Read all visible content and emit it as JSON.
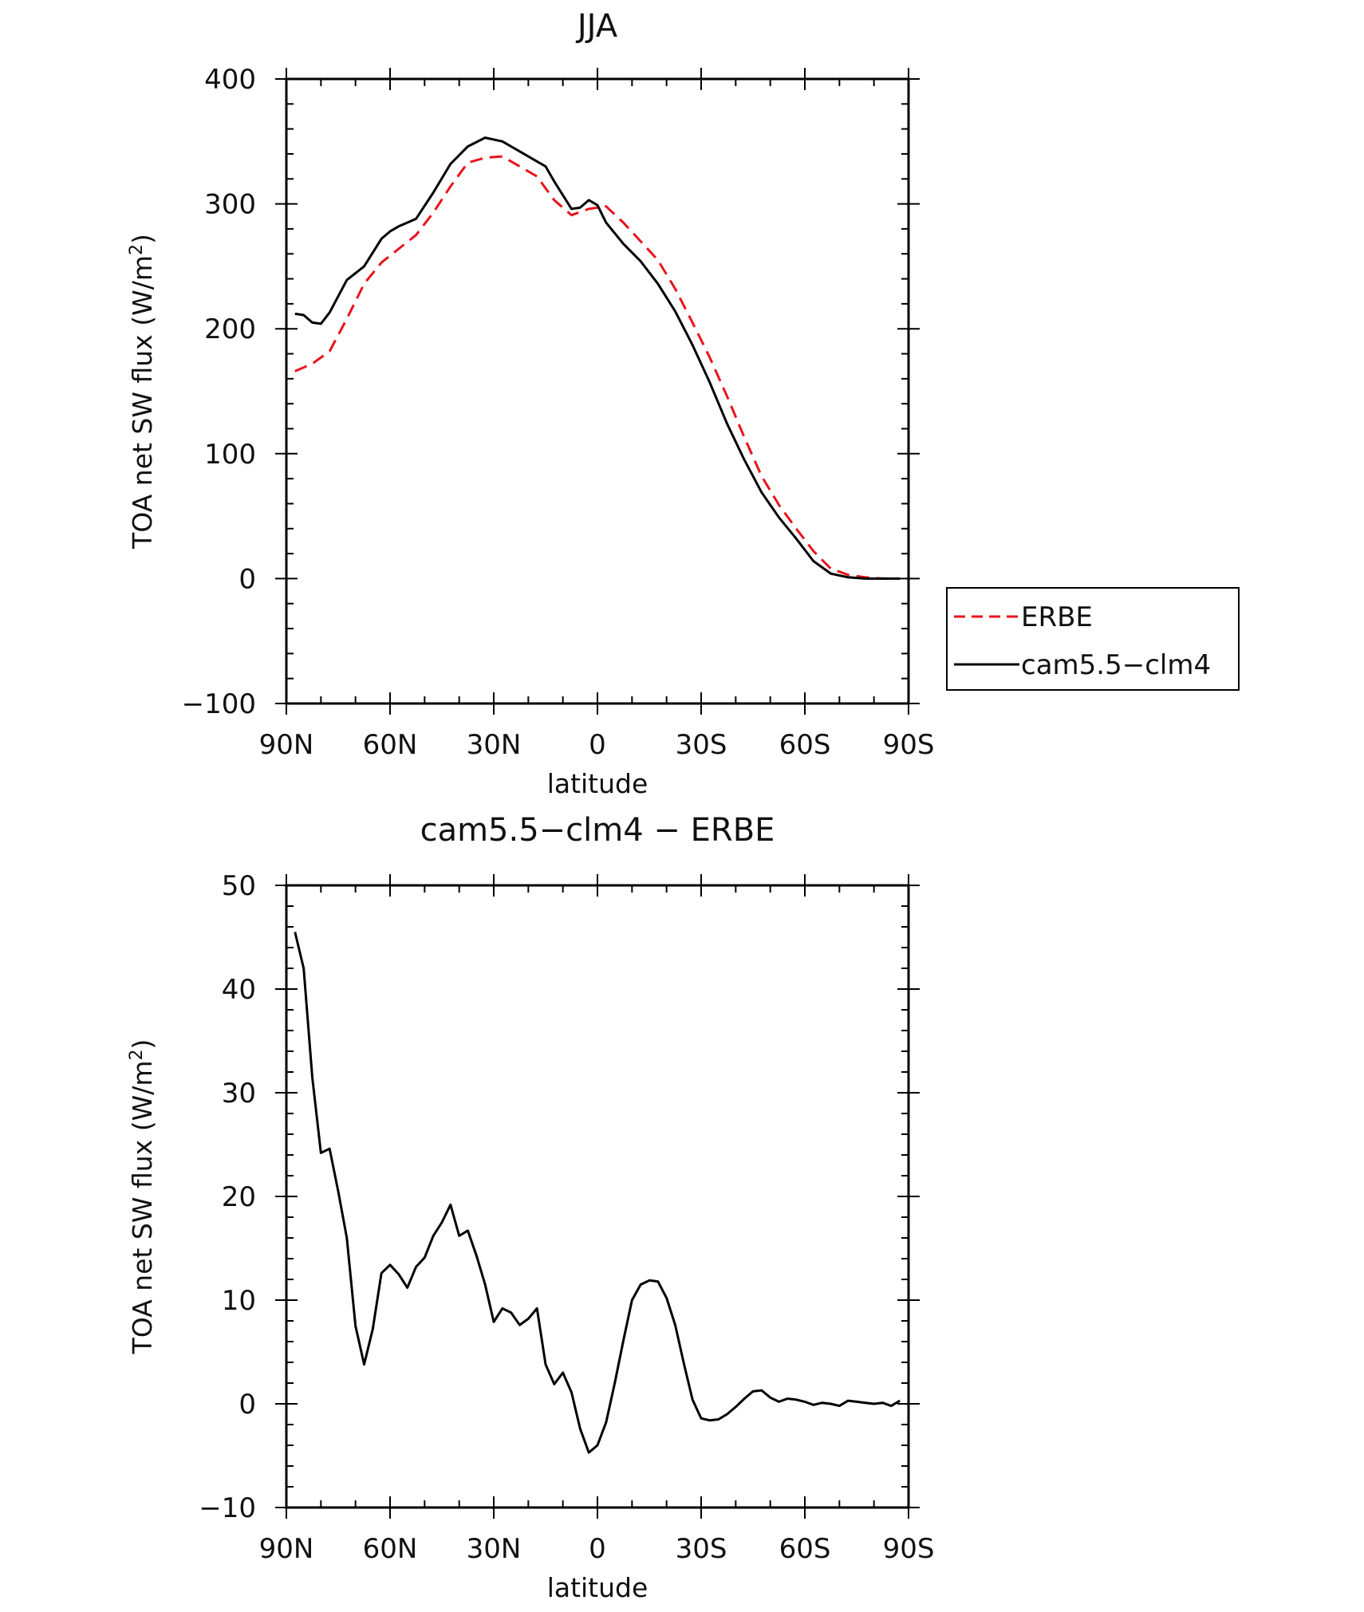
{
  "chart_data": [
    {
      "type": "line",
      "title": "JJA",
      "xlabel": "latitude",
      "ylabel": "TOA net SW flux (W/m²)",
      "ylabel_parts": {
        "main": "TOA net SW flux (W/m",
        "sup": "2",
        "end": ")"
      },
      "x_ticks": [
        {
          "value": 90,
          "label": "90N"
        },
        {
          "value": 60,
          "label": "60N"
        },
        {
          "value": 30,
          "label": "30N"
        },
        {
          "value": 0,
          "label": "0"
        },
        {
          "value": -30,
          "label": "30S"
        },
        {
          "value": -60,
          "label": "60S"
        },
        {
          "value": -90,
          "label": "90S"
        }
      ],
      "xlim": [
        90,
        -90
      ],
      "y_ticks": [
        {
          "value": 400,
          "label": "400"
        },
        {
          "value": 300,
          "label": "300"
        },
        {
          "value": 200,
          "label": "200"
        },
        {
          "value": 100,
          "label": "100"
        },
        {
          "value": 0,
          "label": "0"
        },
        {
          "value": -100,
          "label": "−100"
        }
      ],
      "ylim": [
        -100,
        400
      ],
      "legend_position": "right",
      "series": [
        {
          "name": "ERBE",
          "color": "#e8141c",
          "style": "dashed",
          "x": [
            87.5,
            82.5,
            77.5,
            72.5,
            67.5,
            62.5,
            57.5,
            52.5,
            47.5,
            42.5,
            37.5,
            32.5,
            27.5,
            22.5,
            17.5,
            12.5,
            7.5,
            2.5,
            -2.5,
            -7.5,
            -12.5,
            -17.5,
            -22.5,
            -27.5,
            -32.5,
            -37.5,
            -42.5,
            -47.5,
            -52.5,
            -57.5,
            -62.5,
            -67.5,
            -72.5,
            -77.5,
            -82.5,
            -87.5
          ],
          "y": [
            166,
            172,
            182,
            208,
            236,
            253,
            264,
            275,
            293,
            314,
            333,
            337,
            338,
            330,
            322,
            303,
            291,
            296,
            298,
            285,
            270,
            255,
            232,
            205,
            177,
            146,
            113,
            82,
            59,
            40,
            22,
            8,
            3,
            1,
            0,
            0
          ]
        },
        {
          "name": "cam5.5−clm4",
          "color": "#000000",
          "style": "solid",
          "x": [
            87.5,
            85,
            82.5,
            80,
            77.5,
            72.5,
            67.5,
            62.5,
            60,
            57.5,
            52.5,
            47.5,
            42.5,
            37.5,
            32.5,
            27.5,
            22.5,
            17.5,
            15,
            12.5,
            7.5,
            5,
            2.5,
            0,
            -2.5,
            -7.5,
            -12.5,
            -17.5,
            -22.5,
            -27.5,
            -32.5,
            -37.5,
            -42.5,
            -47.5,
            -52.5,
            -57.5,
            -62.5,
            -67.5,
            -72.5,
            -77.5,
            -82.5,
            -87.5
          ],
          "y": [
            212,
            211,
            205,
            204,
            213,
            239,
            250,
            272,
            278,
            282,
            288,
            309,
            332,
            346,
            353,
            350,
            342,
            334,
            330,
            318,
            296,
            297,
            303,
            299,
            285,
            268,
            254,
            236,
            214,
            187,
            157,
            124,
            95,
            69,
            49,
            32,
            14,
            4,
            1,
            0,
            0,
            0
          ]
        }
      ]
    },
    {
      "type": "line",
      "title": "cam5.5−clm4 − ERBE",
      "xlabel": "latitude",
      "ylabel": "TOA net SW flux (W/m²)",
      "ylabel_parts": {
        "main": "TOA net SW flux (W/m",
        "sup": "2",
        "end": ")"
      },
      "x_ticks": [
        {
          "value": 90,
          "label": "90N"
        },
        {
          "value": 60,
          "label": "60N"
        },
        {
          "value": 30,
          "label": "30N"
        },
        {
          "value": 0,
          "label": "0"
        },
        {
          "value": -30,
          "label": "30S"
        },
        {
          "value": -60,
          "label": "60S"
        },
        {
          "value": -90,
          "label": "90S"
        }
      ],
      "xlim": [
        90,
        -90
      ],
      "y_ticks": [
        {
          "value": 50,
          "label": "50"
        },
        {
          "value": 40,
          "label": "40"
        },
        {
          "value": 30,
          "label": "30"
        },
        {
          "value": 20,
          "label": "20"
        },
        {
          "value": 10,
          "label": "10"
        },
        {
          "value": 0,
          "label": "0"
        },
        {
          "value": -10,
          "label": "−10"
        }
      ],
      "ylim": [
        -10,
        50
      ],
      "series": [
        {
          "color": "#000000",
          "style": "solid",
          "x": [
            87.5,
            85,
            82.5,
            80,
            77.5,
            75,
            72.5,
            70,
            67.5,
            65,
            62.5,
            60,
            57.5,
            55,
            52.5,
            50,
            47.5,
            45,
            42.5,
            40,
            37.5,
            35,
            32.5,
            30,
            27.5,
            25,
            22.5,
            20,
            17.5,
            15,
            12.5,
            10,
            7.5,
            5,
            2.5,
            0,
            -2.5,
            -5,
            -7.5,
            -10,
            -12.5,
            -15,
            -17.5,
            -20,
            -22.5,
            -25,
            -27.5,
            -30,
            -32.5,
            -35,
            -37.5,
            -40,
            -42.5,
            -45,
            -47.5,
            -50,
            -52.5,
            -55,
            -57.5,
            -60,
            -62.5,
            -65,
            -67.5,
            -70,
            -72.5,
            -75,
            -77.5,
            -80,
            -82.5,
            -85,
            -87.5
          ],
          "y": [
            45.5,
            42.0,
            31.5,
            24.2,
            24.6,
            20.5,
            16.0,
            7.5,
            3.8,
            7.2,
            12.6,
            13.4,
            12.5,
            11.2,
            13.2,
            14.1,
            16.2,
            17.5,
            19.2,
            16.2,
            16.7,
            14.3,
            11.5,
            7.9,
            9.2,
            8.8,
            7.6,
            8.2,
            9.2,
            3.8,
            1.9,
            3.0,
            1.1,
            -2.4,
            -4.7,
            -4.0,
            -1.8,
            2.0,
            6.1,
            10.0,
            11.5,
            11.9,
            11.8,
            10.2,
            7.6,
            3.9,
            0.4,
            -1.4,
            -1.6,
            -1.5,
            -1.0,
            -0.3,
            0.5,
            1.2,
            1.3,
            0.6,
            0.2,
            0.5,
            0.4,
            0.2,
            -0.1,
            0.1,
            0.0,
            -0.2,
            0.3,
            0.2,
            0.1,
            0.0,
            0.1,
            -0.2,
            0.3
          ]
        }
      ]
    }
  ]
}
